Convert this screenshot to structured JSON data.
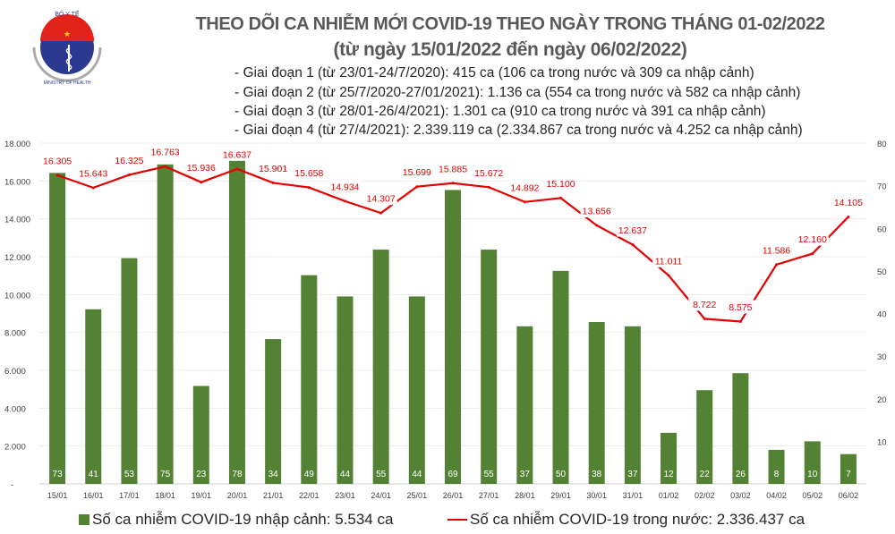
{
  "logo": {
    "top_text": "BỘ Y TẾ",
    "bottom_text": "MINISTRY OF HEALTH"
  },
  "header": {
    "title": "THEO DÕI CA NHIỄM MỚI COVID-19 THEO NGÀY TRONG THÁNG 01-02/2022",
    "subtitle": "(từ ngày 15/01/2022 đến ngày 06/02/2022)",
    "phases": [
      "- Giai đoạn 1 (từ 23/01-24/7/2020): 415 ca (106 ca trong nước và 309 ca nhập cảnh)",
      "- Giai đoạn 2 (từ 25/7/2020-27/01/2021): 1.136 ca (554 ca trong nước và 582 ca nhập cảnh)",
      "- Giai đoạn 3 (từ 28/01-26/4/2021): 1.301 ca (910 ca trong nước và 391 ca nhập cảnh)",
      "- Giai đoạn 4 (từ 27/4/2021): 2.339.119 ca (2.334.867 ca trong nước và 4.252 ca nhập cảnh)"
    ]
  },
  "chart_data": {
    "type": "bar+line",
    "categories": [
      "15/01",
      "16/01",
      "17/01",
      "18/01",
      "19/01",
      "20/01",
      "21/01",
      "22/01",
      "23/01",
      "24/01",
      "25/01",
      "26/01",
      "27/01",
      "28/01",
      "29/01",
      "30/01",
      "31/01",
      "01/02",
      "02/02",
      "03/02",
      "04/02",
      "05/02",
      "06/02"
    ],
    "series": [
      {
        "name": "Số ca nhiễm COVID-19 nhập cảnh: 5.534 ca",
        "type": "bar",
        "axis": "right",
        "color": "#548235",
        "values": [
          73,
          41,
          53,
          75,
          23,
          78,
          34,
          49,
          44,
          55,
          44,
          69,
          55,
          37,
          50,
          38,
          37,
          12,
          22,
          26,
          8,
          10,
          7
        ]
      },
      {
        "name": "Số ca nhiễm COVID-19 trong nước: 2.336.437 ca",
        "type": "line",
        "axis": "left",
        "color": "#e60000",
        "values": [
          16305,
          15643,
          16325,
          16763,
          15936,
          16637,
          15901,
          15658,
          14934,
          14307,
          15699,
          15885,
          15672,
          14892,
          15100,
          13656,
          12637,
          11011,
          8722,
          8575,
          11586,
          12160,
          14105
        ]
      }
    ],
    "left_axis": {
      "ylim": [
        0,
        18000
      ],
      "ticks": [
        "-",
        "2.000",
        "4.000",
        "6.000",
        "8.000",
        "10.000",
        "12.000",
        "14.000",
        "16.000",
        "18.000"
      ]
    },
    "right_axis": {
      "ylim": [
        0,
        80
      ],
      "ticks": [
        "",
        "10",
        "20",
        "30",
        "40",
        "50",
        "60",
        "70",
        "80"
      ]
    },
    "grid": true,
    "legend": "bottom"
  }
}
